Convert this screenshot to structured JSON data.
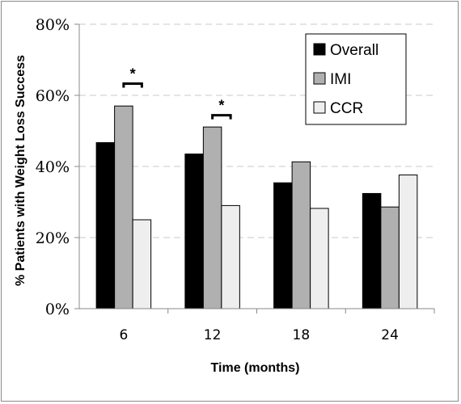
{
  "chart_data": {
    "type": "bar",
    "categories": [
      "6",
      "12",
      "18",
      "24"
    ],
    "series": [
      {
        "name": "Overall",
        "values": [
          46.7,
          43.5,
          35.4,
          32.4
        ],
        "color": "#000000"
      },
      {
        "name": "IMI",
        "values": [
          57.0,
          51.1,
          41.3,
          28.6
        ],
        "color": "#b0b0b0"
      },
      {
        "name": "CCR",
        "values": [
          25.0,
          29.0,
          28.2,
          37.6
        ],
        "color": "#eeeeee"
      }
    ],
    "xlabel": "Time (months)",
    "ylabel": "% Patients with  Weight Loss Success",
    "ylim": [
      0,
      80
    ],
    "yticks": [
      "0%",
      "20%",
      "40%",
      "60%",
      "80%"
    ],
    "ytick_values": [
      0,
      20,
      40,
      60,
      80
    ],
    "grid": "horizontal dashed",
    "legend_position": "top-right",
    "annotations": [
      {
        "text": "*",
        "category": "6",
        "between": [
          "IMI",
          "CCR"
        ],
        "at_value": 63.3
      },
      {
        "text": "*",
        "category": "12",
        "between": [
          "IMI",
          "CCR"
        ],
        "at_value": 54.4
      }
    ]
  }
}
